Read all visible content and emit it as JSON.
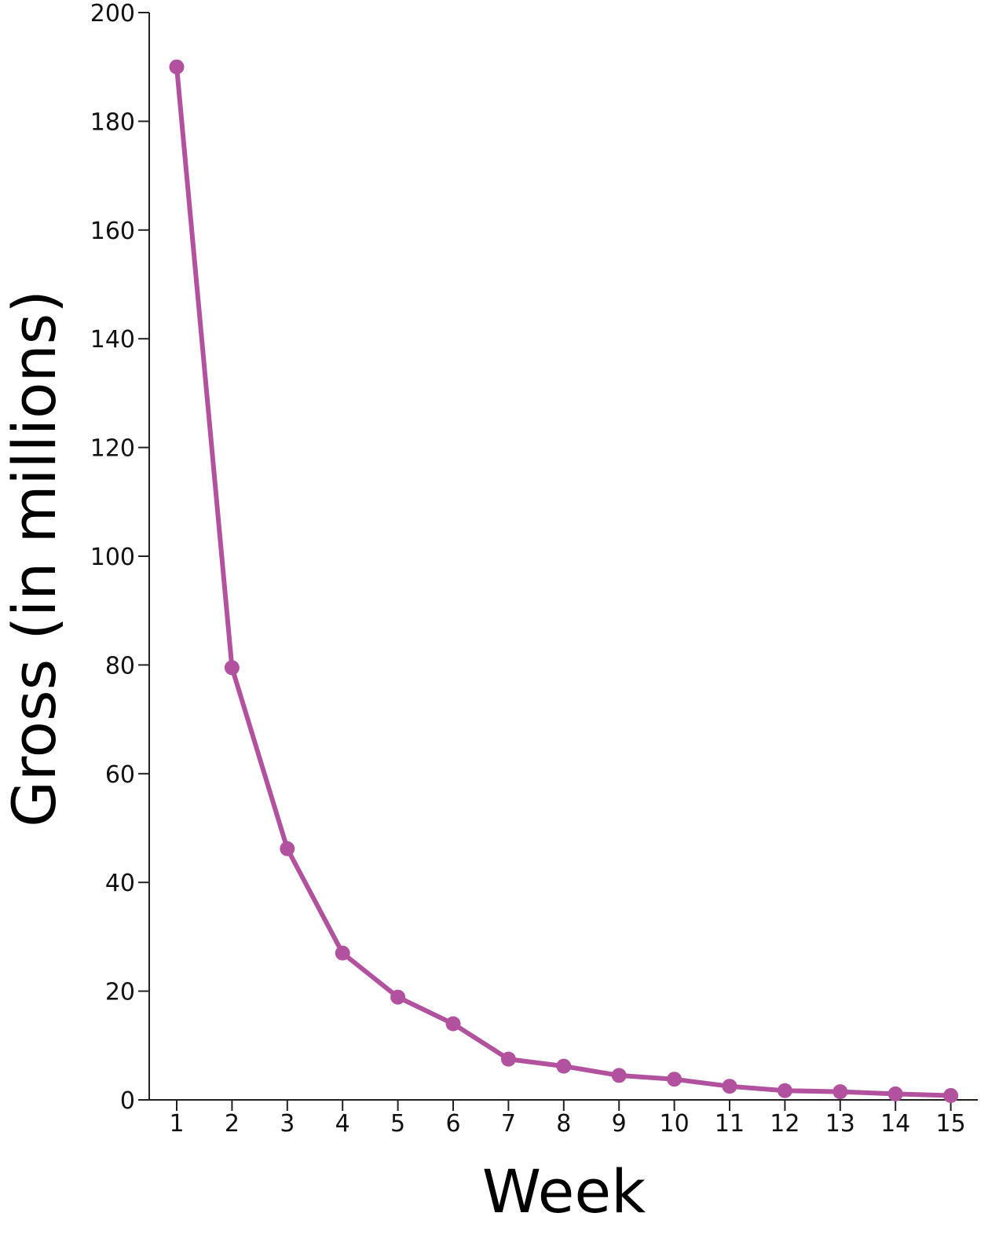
{
  "chart_data": {
    "type": "line",
    "title": "",
    "xlabel": "Week",
    "ylabel": "Gross (in millions)",
    "x": [
      1,
      2,
      3,
      4,
      5,
      6,
      7,
      8,
      9,
      10,
      11,
      12,
      13,
      14,
      15
    ],
    "series": [
      {
        "values": [
          190,
          79.5,
          46.2,
          27,
          18.9,
          14,
          7.5,
          6.2,
          4.5,
          3.8,
          2.5,
          1.7,
          1.5,
          1.1,
          0.8
        ]
      }
    ],
    "xticks": [
      "1",
      "2",
      "3",
      "4",
      "5",
      "6",
      "7",
      "8",
      "9",
      "10",
      "11",
      "12",
      "13",
      "14",
      "15"
    ],
    "yticks": [
      0,
      20,
      40,
      60,
      80,
      100,
      120,
      140,
      160,
      180,
      200
    ],
    "xlim": [
      0.5,
      15.5
    ],
    "ylim": [
      0,
      200
    ],
    "grid": false,
    "legend": "none",
    "colors": {
      "series": "#B2529F",
      "axis": "#222222",
      "text": "#111111"
    }
  }
}
